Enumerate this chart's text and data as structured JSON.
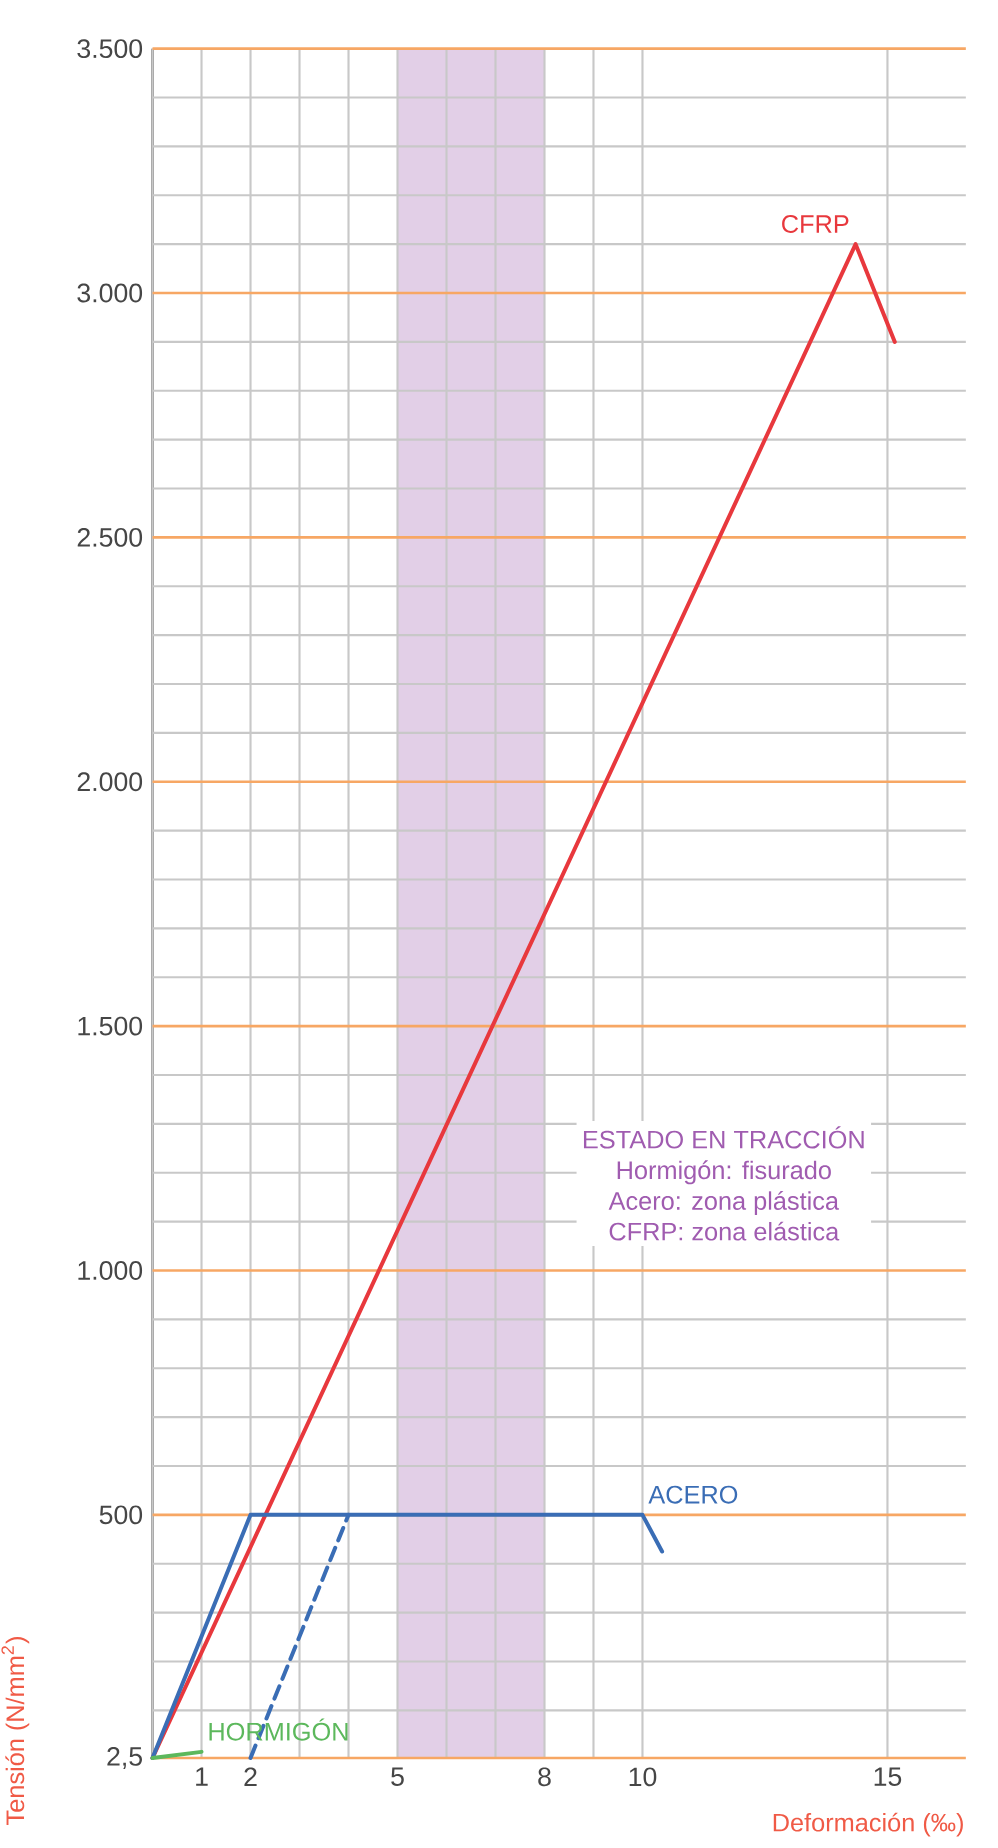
{
  "chart_data": {
    "type": "line",
    "xlabel": "Deformación (‰)",
    "ylabel": "Tensión (N/mm$^{2}$)",
    "xlim": [
      0,
      16.6
    ],
    "ylim": [
      2.5,
      3500
    ],
    "xticks": [
      {
        "value": 0,
        "label": null
      },
      1,
      2,
      {
        "value": 3,
        "label": null
      },
      {
        "value": 4,
        "label": null
      },
      5,
      {
        "value": 6,
        "label": null
      },
      {
        "value": 7,
        "label": null
      },
      8,
      {
        "value": 9,
        "label": null
      },
      10,
      15
    ],
    "yticks": [
      {
        "value": 2.5,
        "label": "2,5"
      },
      {
        "value": 100,
        "label": null
      },
      {
        "value": 200,
        "label": null
      },
      {
        "value": 300,
        "label": null
      },
      {
        "value": 400,
        "label": null
      },
      500,
      {
        "value": 600,
        "label": null
      },
      {
        "value": 700,
        "label": null
      },
      {
        "value": 800,
        "label": null
      },
      {
        "value": 900,
        "label": null
      },
      {
        "value": 1000,
        "label": "1.000"
      },
      {
        "value": 1100,
        "label": null
      },
      {
        "value": 1200,
        "label": null
      },
      {
        "value": 1300,
        "label": null
      },
      {
        "value": 1400,
        "label": null
      },
      {
        "value": 1500,
        "label": "1.500"
      },
      {
        "value": 1600,
        "label": null
      },
      {
        "value": 1700,
        "label": null
      },
      {
        "value": 1800,
        "label": null
      },
      {
        "value": 1900,
        "label": null
      },
      {
        "value": 2000,
        "label": "2.000"
      },
      {
        "value": 2100,
        "label": null
      },
      {
        "value": 2200,
        "label": null
      },
      {
        "value": 2300,
        "label": null
      },
      {
        "value": 2400,
        "label": null
      },
      {
        "value": 2500,
        "label": "2.500"
      },
      {
        "value": 2600,
        "label": null
      },
      {
        "value": 2700,
        "label": null
      },
      {
        "value": 2800,
        "label": null
      },
      {
        "value": 2900,
        "label": null
      },
      {
        "value": 3000,
        "label": "3.000"
      },
      {
        "value": 3100,
        "label": null
      },
      {
        "value": 3200,
        "label": null
      },
      {
        "value": 3300,
        "label": null
      },
      {
        "value": 3400,
        "label": null
      },
      {
        "value": 3500,
        "label": "3.500"
      }
    ],
    "grid": true,
    "legend": false,
    "series": [
      {
        "name": "CFRP",
        "color": "#e8383d",
        "x": [
          0,
          14.35,
          15.15
        ],
        "values": [
          2.5,
          3100,
          2900
        ]
      },
      {
        "name": "ACERO",
        "color": "#3a6db5",
        "x": [
          0,
          2,
          10,
          10.4
        ],
        "values": [
          2.5,
          500,
          500,
          425
        ]
      },
      {
        "color": "#3a6db5",
        "line_style": "dashed",
        "x": [
          2,
          4
        ],
        "values": [
          2.5,
          500
        ]
      },
      {
        "name": "HORMIGÓN",
        "color": "#5cb85c",
        "x": [
          0,
          1
        ],
        "values": [
          2.5,
          15
        ]
      }
    ],
    "bands": [
      {
        "axis": "x",
        "from": 5,
        "to": 8,
        "color": "#e2cfe7"
      }
    ],
    "annotations": [
      "ESTADO EN TRACCIÓN",
      "Hormigón: fisurado",
      "Acero: zona plástica",
      "CFRP: zona elástica"
    ]
  }
}
